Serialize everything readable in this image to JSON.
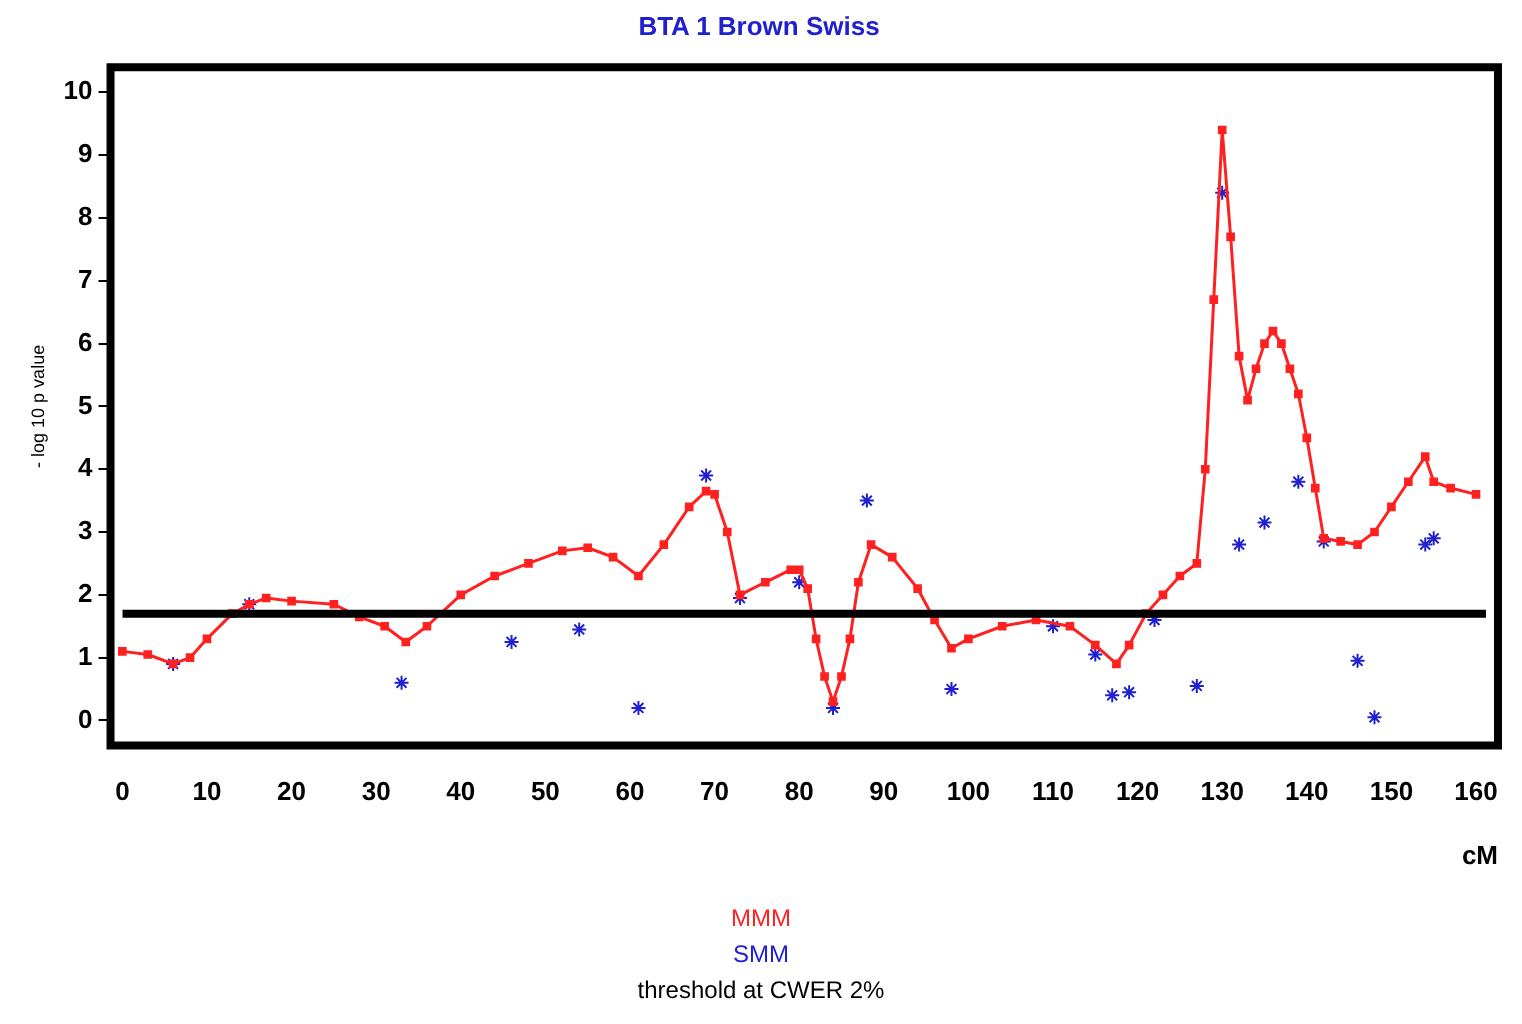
{
  "chart_data": {
    "type": "line",
    "title": "BTA 1 Brown Swiss",
    "xlabel": "cM",
    "ylabel": "- log 10 p value",
    "xlim": [
      -1.4,
      162.6
    ],
    "xticks": [
      0,
      10,
      20,
      30,
      40,
      50,
      60,
      70,
      80,
      90,
      100,
      110,
      120,
      130,
      140,
      150,
      160
    ],
    "ylim": [
      -0.4,
      10.4
    ],
    "yticks": [
      0,
      1,
      2,
      3,
      4,
      5,
      6,
      7,
      8,
      9,
      10
    ],
    "grid": false,
    "legend": "bottom",
    "series": [
      {
        "name": "MMM",
        "color": "#ff2020",
        "marker": "square",
        "line_style": "solid",
        "x": [
          0,
          3,
          6,
          8,
          10,
          13,
          15,
          17,
          20,
          25,
          28,
          31,
          33.5,
          36,
          40,
          44,
          48,
          52,
          55,
          58,
          61,
          64,
          67,
          69,
          70,
          71.5,
          73,
          76,
          79,
          80,
          81,
          82,
          83,
          84,
          85,
          86,
          87,
          88.5,
          91,
          94,
          96,
          98,
          100,
          104,
          108,
          112,
          115,
          117.5,
          119,
          121,
          123,
          125,
          127,
          128,
          129,
          130,
          131,
          132,
          133,
          134,
          135,
          136,
          137,
          138,
          139,
          140,
          141,
          142,
          144,
          146,
          148,
          150,
          152,
          154,
          155,
          157,
          160
        ],
        "values": [
          1.1,
          1.05,
          0.9,
          1.0,
          1.3,
          1.7,
          1.85,
          1.95,
          1.9,
          1.85,
          1.65,
          1.5,
          1.25,
          1.5,
          2.0,
          2.3,
          2.5,
          2.7,
          2.75,
          2.6,
          2.3,
          2.8,
          3.4,
          3.65,
          3.6,
          3.0,
          2.0,
          2.2,
          2.4,
          2.4,
          2.1,
          1.3,
          0.7,
          0.3,
          0.7,
          1.3,
          2.2,
          2.8,
          2.6,
          2.1,
          1.6,
          1.15,
          1.3,
          1.5,
          1.6,
          1.5,
          1.2,
          0.9,
          1.2,
          1.7,
          2.0,
          2.3,
          2.5,
          4.0,
          6.7,
          9.4,
          7.7,
          5.8,
          5.1,
          5.6,
          6.0,
          6.2,
          6.0,
          5.6,
          5.2,
          4.5,
          3.7,
          2.9,
          2.85,
          2.8,
          3.0,
          3.4,
          3.8,
          4.2,
          3.8,
          3.7,
          3.6
        ]
      },
      {
        "name": "SMM",
        "type": "scatter",
        "color": "#2020d0",
        "marker": "cross",
        "x": [
          6,
          15,
          33,
          46,
          54,
          61,
          69,
          73,
          80,
          84,
          88,
          98,
          110,
          115,
          117,
          119,
          122,
          127,
          130,
          132,
          135,
          139,
          142,
          146,
          148,
          154,
          155
        ],
        "values": [
          0.9,
          1.85,
          0.6,
          1.25,
          1.45,
          0.2,
          3.9,
          1.95,
          2.2,
          0.2,
          3.5,
          0.5,
          1.5,
          1.05,
          0.4,
          0.45,
          1.6,
          0.55,
          8.4,
          2.8,
          3.15,
          3.8,
          2.85,
          0.95,
          0.05,
          2.8,
          2.9
        ]
      }
    ],
    "ref_lines": [
      {
        "axis": "y",
        "value": 1.7,
        "label": "threshold at CWER 2%",
        "color": "#000000"
      }
    ]
  }
}
